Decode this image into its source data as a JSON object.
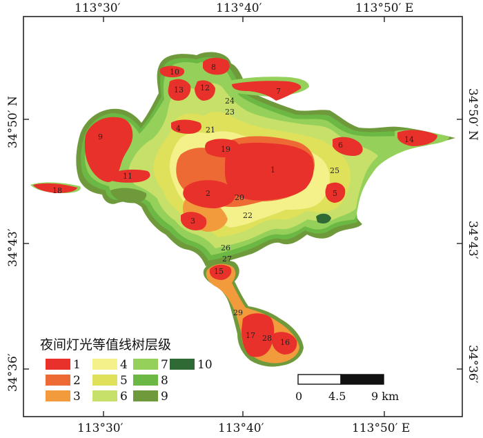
{
  "map": {
    "lon_labels": [
      "113°30′",
      "113°40′",
      "113°50′ E"
    ],
    "lat_labels": [
      "34°50′ N",
      "34°43′",
      "34°36′"
    ],
    "zone_labels": [
      "1",
      "2",
      "3",
      "4",
      "5",
      "6",
      "7",
      "8",
      "9",
      "10",
      "11",
      "12",
      "13",
      "14",
      "15",
      "16",
      "17",
      "18",
      "19",
      "20",
      "21",
      "22",
      "23",
      "24",
      "25",
      "26",
      "27",
      "28",
      "29"
    ],
    "legend": {
      "title": "夜间灯光等值线树层级",
      "items": [
        {
          "label": "1",
          "color": "#e8312a"
        },
        {
          "label": "2",
          "color": "#ee6a35"
        },
        {
          "label": "3",
          "color": "#f29b3c"
        },
        {
          "label": "4",
          "color": "#f4f08a"
        },
        {
          "label": "5",
          "color": "#dfe15a"
        },
        {
          "label": "6",
          "color": "#c6e06a"
        },
        {
          "label": "7",
          "color": "#95d15a"
        },
        {
          "label": "8",
          "color": "#6cb845"
        },
        {
          "label": "9",
          "color": "#6f9a3c"
        },
        {
          "label": "10",
          "color": "#2f6a35"
        }
      ]
    },
    "scale_bar": {
      "labels": [
        "0",
        "4.5",
        "9 km"
      ]
    }
  }
}
